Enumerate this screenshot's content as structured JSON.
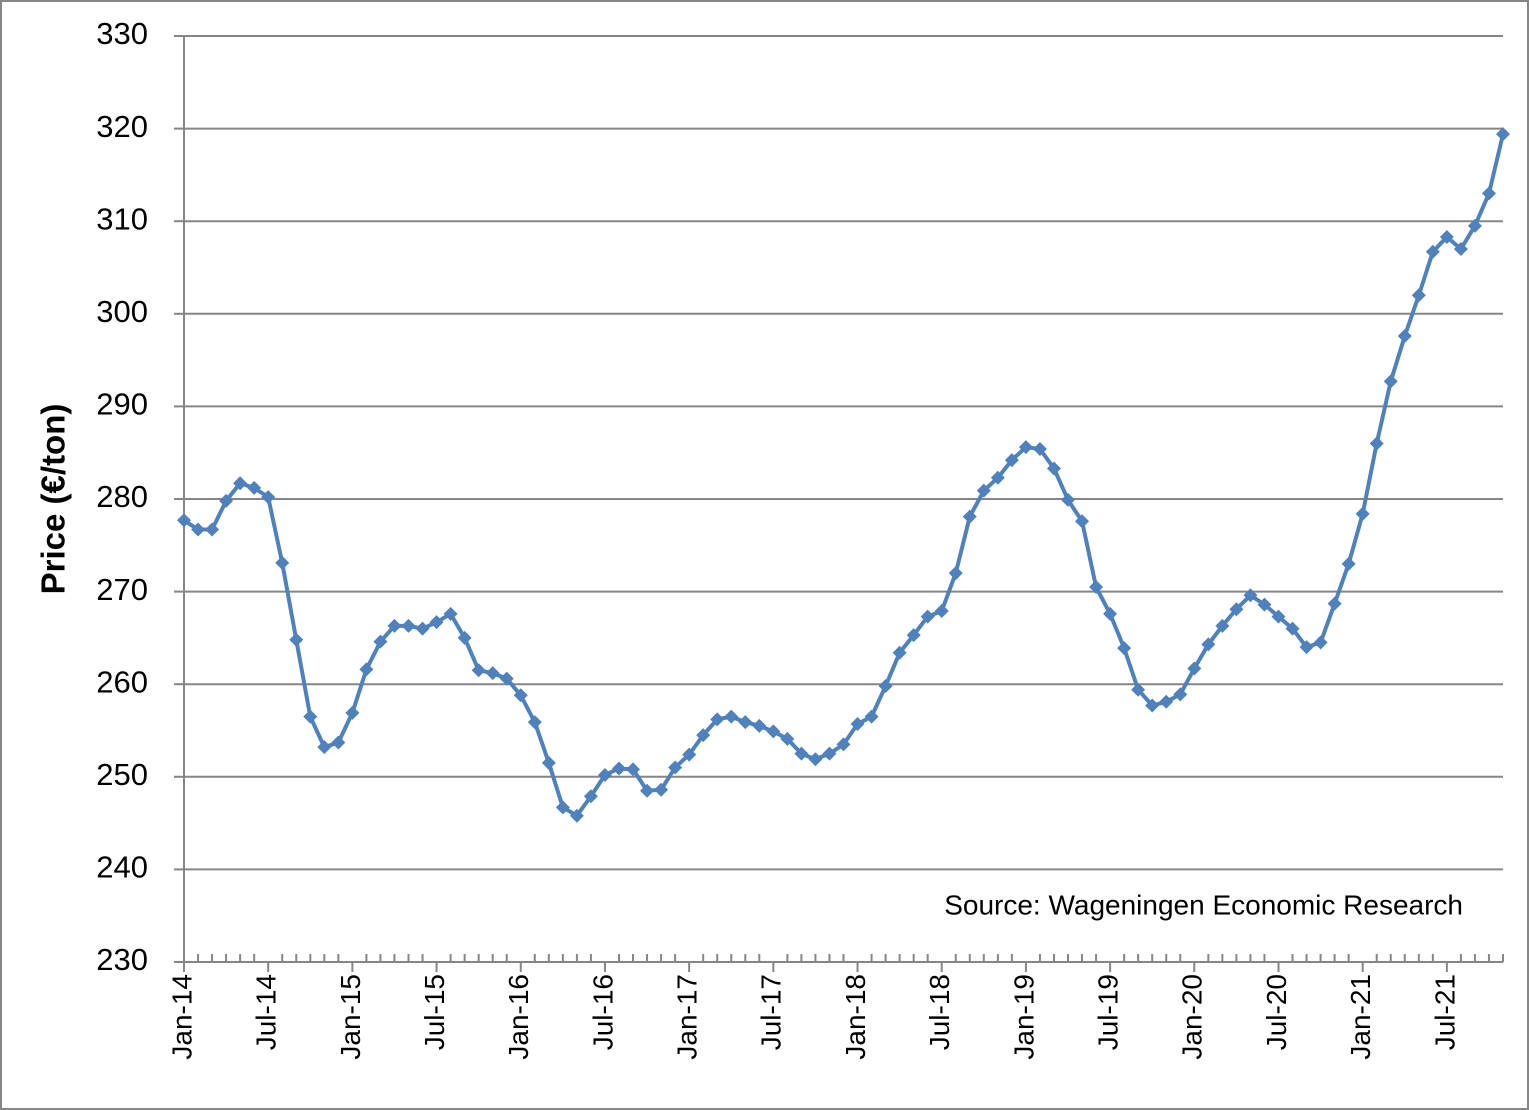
{
  "chart_data": {
    "type": "line",
    "y_label": "Price (€/ton)",
    "annotation": "Source: Wageningen Economic Research",
    "categories": [
      "Jan-14",
      null,
      null,
      null,
      null,
      null,
      "Jul-14",
      null,
      null,
      null,
      null,
      null,
      "Jan-15",
      null,
      null,
      null,
      null,
      null,
      "Jul-15",
      null,
      null,
      null,
      null,
      null,
      "Jan-16",
      null,
      null,
      null,
      null,
      null,
      "Jul-16",
      null,
      null,
      null,
      null,
      null,
      "Jan-17",
      null,
      null,
      null,
      null,
      null,
      "Jul-17",
      null,
      null,
      null,
      null,
      null,
      "Jan-18",
      null,
      null,
      null,
      null,
      null,
      "Jul-18",
      null,
      null,
      null,
      null,
      null,
      "Jan-19",
      null,
      null,
      null,
      null,
      null,
      "Jul-19",
      null,
      null,
      null,
      null,
      null,
      "Jan-20",
      null,
      null,
      null,
      null,
      null,
      "Jul-20",
      null,
      null,
      null,
      null,
      null,
      "Jan-21",
      null,
      null,
      null,
      null,
      null,
      "Jul-21",
      null,
      null,
      null,
      null
    ],
    "series": [
      {
        "name": "Price",
        "color": "#4f81bd",
        "values": [
          277.7,
          276.7,
          276.7,
          279.8,
          281.7,
          281.2,
          280.2,
          273.1,
          264.8,
          256.5,
          253.2,
          253.7,
          256.9,
          261.6,
          264.6,
          266.3,
          266.3,
          266.0,
          266.7,
          267.6,
          265.0,
          261.5,
          261.2,
          260.6,
          258.8,
          255.9,
          251.5,
          246.7,
          245.8,
          247.9,
          250.2,
          250.9,
          250.8,
          248.5,
          248.6,
          251.0,
          252.4,
          254.5,
          256.2,
          256.5,
          255.9,
          255.5,
          254.9,
          254.1,
          252.5,
          251.9,
          252.5,
          253.5,
          255.7,
          256.5,
          259.8,
          263.4,
          265.3,
          267.3,
          267.9,
          272.0,
          278.1,
          280.9,
          282.3,
          284.2,
          285.6,
          285.4,
          283.3,
          279.9,
          277.6,
          270.5,
          267.6,
          263.9,
          259.4,
          257.7,
          258.1,
          258.9,
          261.7,
          264.3,
          266.3,
          268.1,
          269.6,
          268.6,
          267.3,
          266.0,
          264.0,
          264.5,
          268.7,
          273.0,
          278.4,
          286.0,
          292.7,
          297.6,
          302.0,
          306.7,
          308.3,
          307.0,
          309.5,
          313.0,
          319.4
        ]
      }
    ],
    "ylim": [
      230,
      330
    ],
    "yticks": [
      230,
      240,
      250,
      260,
      270,
      280,
      290,
      300,
      310,
      320,
      330
    ],
    "grid": true
  }
}
